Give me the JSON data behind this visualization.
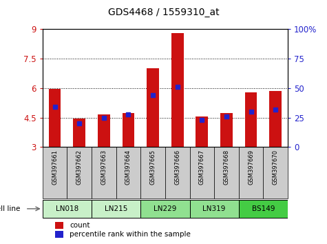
{
  "title": "GDS4468 / 1559310_at",
  "samples": [
    "GSM397661",
    "GSM397662",
    "GSM397663",
    "GSM397664",
    "GSM397665",
    "GSM397666",
    "GSM397667",
    "GSM397668",
    "GSM397669",
    "GSM397670"
  ],
  "count_values": [
    5.97,
    4.45,
    4.65,
    4.72,
    7.0,
    8.8,
    4.57,
    4.72,
    5.8,
    5.85
  ],
  "percentile_values": [
    34,
    20,
    25,
    28,
    44,
    51,
    23,
    26,
    30,
    32
  ],
  "cell_lines": [
    {
      "name": "LN018",
      "start": 0,
      "end": 2,
      "color": "#c8f0c8"
    },
    {
      "name": "LN215",
      "start": 2,
      "end": 4,
      "color": "#c8f0c8"
    },
    {
      "name": "LN229",
      "start": 4,
      "end": 6,
      "color": "#90e090"
    },
    {
      "name": "LN319",
      "start": 6,
      "end": 8,
      "color": "#90e090"
    },
    {
      "name": "BS149",
      "start": 8,
      "end": 10,
      "color": "#44cc44"
    }
  ],
  "ylim_left": [
    3,
    9
  ],
  "ylim_right": [
    0,
    100
  ],
  "yticks_left": [
    3,
    4.5,
    6,
    7.5,
    9
  ],
  "yticks_right": [
    0,
    25,
    50,
    75,
    100
  ],
  "bar_color": "#cc1111",
  "percentile_color": "#2222cc",
  "bar_bottom": 3.0,
  "right_axis_color": "#2222cc",
  "left_axis_color": "#cc1111",
  "legend_count_color": "#cc1111",
  "legend_percentile_color": "#2222cc",
  "sample_box_color": "#cccccc",
  "bar_width": 0.5
}
